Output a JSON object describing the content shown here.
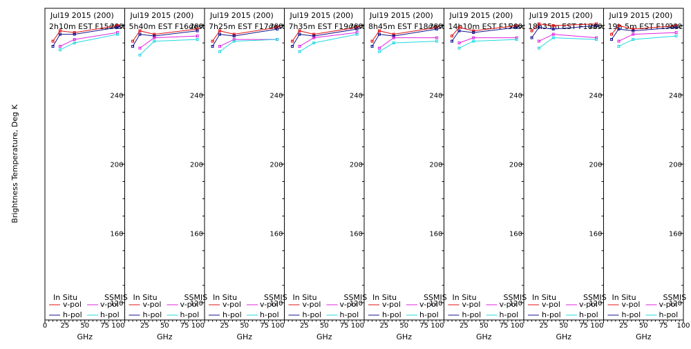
{
  "ylabel": "Brightness Temperature, Deg K",
  "legend": {
    "left_title": "In Situ",
    "right_title": "SSMIS",
    "v_pol": "v-pol",
    "h_pol": "h-pol"
  },
  "colors": {
    "insitu_v": "#e01010",
    "insitu_h": "#10108a",
    "ssmis_v": "#e020e0",
    "ssmis_h": "#20d8e0"
  },
  "chart_data": [
    {
      "type": "line",
      "title": "Jul19 2015 (200)",
      "subtitle": "2h10m EST F15dest",
      "xlabel": "GHz",
      "xlim": [
        0,
        100
      ],
      "ylim": [
        110,
        290
      ],
      "x_ticks": [
        "0",
        "25",
        "50",
        "75",
        "100"
      ],
      "y_ticks": [
        "120",
        "160",
        "200",
        "240",
        "280"
      ],
      "series": [
        {
          "name": "In Situ v-pol",
          "x": [
            10,
            19,
            37,
            91
          ],
          "values": [
            271,
            277,
            276,
            280
          ]
        },
        {
          "name": "In Situ h-pol",
          "x": [
            10,
            19,
            37,
            91
          ],
          "values": [
            268,
            275,
            275,
            279
          ]
        },
        {
          "name": "SSMIS v-pol",
          "x": [
            19,
            37,
            91
          ],
          "values": [
            268,
            272,
            276
          ]
        },
        {
          "name": "SSMIS h-pol",
          "x": [
            19,
            37,
            91
          ],
          "values": [
            266,
            270,
            275
          ]
        }
      ]
    },
    {
      "type": "line",
      "title": "Jul19 2015 (200)",
      "subtitle": "5h40m EST F16dest",
      "xlabel": "GHz",
      "xlim": [
        0,
        100
      ],
      "ylim": [
        110,
        290
      ],
      "x_ticks": [
        "25",
        "50",
        "75",
        "100"
      ],
      "y_ticks": [
        "120",
        "160",
        "200",
        "240",
        "280"
      ],
      "series": [
        {
          "name": "In Situ v-pol",
          "x": [
            10,
            19,
            37,
            91
          ],
          "values": [
            271,
            277,
            275,
            278
          ]
        },
        {
          "name": "In Situ h-pol",
          "x": [
            10,
            19,
            37,
            91
          ],
          "values": [
            268,
            275,
            274,
            277
          ]
        },
        {
          "name": "SSMIS v-pol",
          "x": [
            19,
            37,
            91
          ],
          "values": [
            267,
            273,
            274
          ]
        },
        {
          "name": "SSMIS h-pol",
          "x": [
            19,
            37,
            91
          ],
          "values": [
            263,
            271,
            272
          ]
        }
      ]
    },
    {
      "type": "line",
      "title": "Jul19 2015 (200)",
      "subtitle": "7h25m EST F17dest",
      "xlabel": "GHz",
      "xlim": [
        0,
        100
      ],
      "ylim": [
        110,
        290
      ],
      "x_ticks": [
        "25",
        "50",
        "75",
        "100"
      ],
      "y_ticks": [
        "120",
        "160",
        "200",
        "240",
        "280"
      ],
      "series": [
        {
          "name": "In Situ v-pol",
          "x": [
            10,
            19,
            37,
            91
          ],
          "values": [
            271,
            277,
            275,
            279
          ]
        },
        {
          "name": "In Situ h-pol",
          "x": [
            10,
            19,
            37,
            91
          ],
          "values": [
            268,
            275,
            274,
            278
          ]
        },
        {
          "name": "SSMIS v-pol",
          "x": [
            19,
            37,
            91
          ],
          "values": [
            268,
            272,
            272
          ]
        },
        {
          "name": "SSMIS h-pol",
          "x": [
            19,
            37,
            91
          ],
          "values": [
            265,
            271,
            272
          ]
        }
      ]
    },
    {
      "type": "line",
      "title": "Jul19 2015 (200)",
      "subtitle": "7h35m EST F19dest",
      "xlabel": "GHz",
      "xlim": [
        0,
        100
      ],
      "ylim": [
        110,
        290
      ],
      "x_ticks": [
        "25",
        "50",
        "75",
        "100"
      ],
      "y_ticks": [
        "120",
        "160",
        "200",
        "240",
        "280"
      ],
      "series": [
        {
          "name": "In Situ v-pol",
          "x": [
            10,
            19,
            37,
            91
          ],
          "values": [
            271,
            277,
            275,
            279
          ]
        },
        {
          "name": "In Situ h-pol",
          "x": [
            10,
            19,
            37,
            91
          ],
          "values": [
            268,
            275,
            274,
            278
          ]
        },
        {
          "name": "SSMIS v-pol",
          "x": [
            19,
            37,
            91
          ],
          "values": [
            268,
            273,
            276
          ]
        },
        {
          "name": "SSMIS h-pol",
          "x": [
            19,
            37,
            91
          ],
          "values": [
            265,
            270,
            275
          ]
        }
      ]
    },
    {
      "type": "line",
      "title": "Jul19 2015 (200)",
      "subtitle": "8h45m EST F18dest",
      "xlabel": "GHz",
      "xlim": [
        0,
        100
      ],
      "ylim": [
        110,
        290
      ],
      "x_ticks": [
        "25",
        "50",
        "75",
        "100"
      ],
      "y_ticks": [
        "120",
        "160",
        "200",
        "240",
        "280"
      ],
      "series": [
        {
          "name": "In Situ v-pol",
          "x": [
            10,
            19,
            37,
            91
          ],
          "values": [
            271,
            277,
            275,
            279
          ]
        },
        {
          "name": "In Situ h-pol",
          "x": [
            10,
            19,
            37,
            91
          ],
          "values": [
            268,
            275,
            274,
            278
          ]
        },
        {
          "name": "SSMIS v-pol",
          "x": [
            19,
            37,
            91
          ],
          "values": [
            267,
            273,
            273
          ]
        },
        {
          "name": "SSMIS h-pol",
          "x": [
            19,
            37,
            91
          ],
          "values": [
            265,
            270,
            271
          ]
        }
      ]
    },
    {
      "type": "line",
      "title": "Jul19 2015 (200)",
      "subtitle": "14h10m EST F15asc",
      "xlabel": "GHz",
      "xlim": [
        0,
        100
      ],
      "ylim": [
        110,
        290
      ],
      "x_ticks": [
        "25",
        "50",
        "75",
        "100"
      ],
      "y_ticks": [
        "120",
        "160",
        "200",
        "240",
        "280"
      ],
      "series": [
        {
          "name": "In Situ v-pol",
          "x": [
            10,
            19,
            37,
            91
          ],
          "values": [
            274,
            279,
            277,
            280
          ]
        },
        {
          "name": "In Situ h-pol",
          "x": [
            10,
            19,
            37,
            91
          ],
          "values": [
            271,
            277,
            276,
            279
          ]
        },
        {
          "name": "SSMIS v-pol",
          "x": [
            19,
            37,
            91
          ],
          "values": [
            270,
            273,
            273
          ]
        },
        {
          "name": "SSMIS h-pol",
          "x": [
            19,
            37,
            91
          ],
          "values": [
            267,
            271,
            272
          ]
        }
      ]
    },
    {
      "type": "line",
      "title": "Jul19 2015 (200)",
      "subtitle": "18h35m EST F18asc",
      "xlabel": "GHz",
      "xlim": [
        0,
        100
      ],
      "ylim": [
        110,
        290
      ],
      "x_ticks": [
        "25",
        "50",
        "75",
        "100"
      ],
      "y_ticks": [
        "120",
        "160",
        "200",
        "240",
        "280"
      ],
      "series": [
        {
          "name": "In Situ v-pol",
          "x": [
            10,
            19,
            37,
            91
          ],
          "values": [
            277,
            281,
            280,
            281
          ]
        },
        {
          "name": "In Situ h-pol",
          "x": [
            10,
            19,
            37,
            91
          ],
          "values": [
            273,
            279,
            278,
            280
          ]
        },
        {
          "name": "SSMIS v-pol",
          "x": [
            19,
            37,
            91
          ],
          "values": [
            271,
            275,
            273
          ]
        },
        {
          "name": "SSMIS h-pol",
          "x": [
            19,
            37,
            91
          ],
          "values": [
            267,
            273,
            272
          ]
        }
      ]
    },
    {
      "type": "line",
      "title": "Jul19 2015 (200)",
      "subtitle": "19h 5m EST F19asc",
      "xlabel": "GHz",
      "xlim": [
        0,
        100
      ],
      "ylim": [
        110,
        290
      ],
      "x_ticks": [
        "25",
        "50",
        "75",
        "100"
      ],
      "y_ticks": [
        "120",
        "160",
        "200",
        "240",
        "280"
      ],
      "series": [
        {
          "name": "In Situ v-pol",
          "x": [
            10,
            19,
            37,
            91
          ],
          "values": [
            275,
            280,
            278,
            280
          ]
        },
        {
          "name": "In Situ h-pol",
          "x": [
            10,
            19,
            37,
            91
          ],
          "values": [
            272,
            278,
            277,
            279
          ]
        },
        {
          "name": "SSMIS v-pol",
          "x": [
            19,
            37,
            91
          ],
          "values": [
            271,
            275,
            276
          ]
        },
        {
          "name": "SSMIS h-pol",
          "x": [
            19,
            37,
            91
          ],
          "values": [
            268,
            272,
            274
          ]
        }
      ]
    }
  ]
}
